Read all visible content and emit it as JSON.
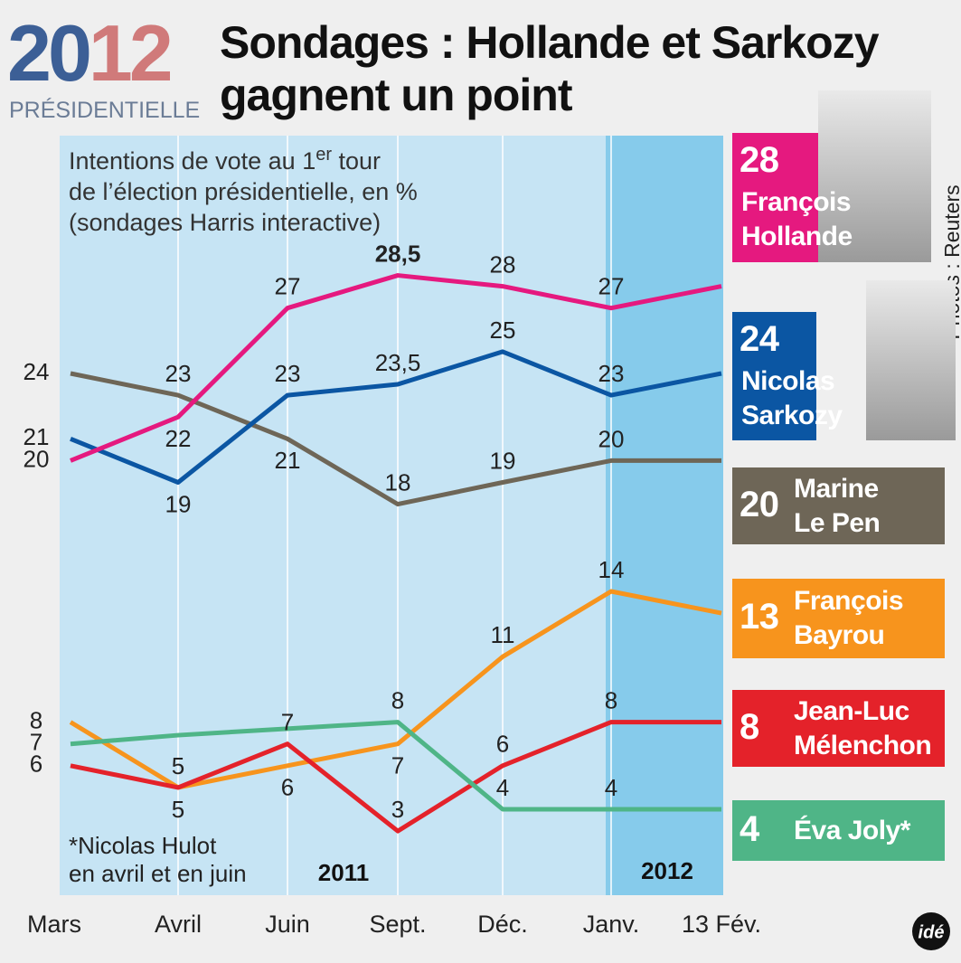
{
  "header": {
    "year": "2012",
    "label": "PRÉSIDENTIELLE",
    "credit": "Photos : Reuters",
    "logo": "idé"
  },
  "chart_data": {
    "type": "line",
    "title": "Sondages : Hollande et Sarkozy\ngagnent un point",
    "subtitle": [
      "Intentions de vote au 1",
      "er",
      " tour\nde l’élection présidentielle, en %\n(sondages Harris interactive)"
    ],
    "note": "*Nicolas Hulot\nen avril et en juin",
    "periods": [
      "2011",
      "2012"
    ],
    "categories": [
      "Mars",
      "Avril",
      "Juin",
      "Sept.",
      "Déc.",
      "Janv.",
      "13 Fév."
    ],
    "series": [
      {
        "name": "François\nHollande",
        "color": "#e5197f",
        "values": [
          20,
          22,
          27,
          28.5,
          28,
          27,
          28
        ],
        "value_labels": [
          "20",
          "22",
          "27",
          "28,5",
          "28",
          "27",
          null
        ]
      },
      {
        "name": "Nicolas\nSarkozy",
        "color": "#0b56a3",
        "values": [
          21,
          19,
          23,
          23.5,
          25,
          23,
          24
        ],
        "value_labels": [
          "21",
          "19",
          "23",
          "23,5",
          "25",
          "23",
          null
        ]
      },
      {
        "name": "Marine\nLe Pen",
        "color": "#6e6657",
        "values": [
          24,
          23,
          21,
          18,
          19,
          20,
          20
        ],
        "value_labels": [
          "24",
          "23",
          "21",
          "18",
          "19",
          "20",
          null
        ]
      },
      {
        "name": "François\nBayrou",
        "color": "#f7941d",
        "values": [
          8,
          5,
          6,
          7,
          11,
          14,
          13
        ],
        "value_labels": [
          "8",
          "5",
          "6",
          "7",
          "11",
          "14",
          null
        ]
      },
      {
        "name": "Jean-Luc\nMélenchon",
        "color": "#e4222a",
        "values": [
          6,
          5,
          7,
          3,
          6,
          8,
          8
        ],
        "value_labels": [
          "6",
          "5",
          "7",
          "3",
          "6",
          "8",
          null
        ]
      },
      {
        "name": "Éva Joly*",
        "color": "#4fb587",
        "values": [
          7,
          7.4,
          7.7,
          8,
          4,
          4,
          4
        ],
        "value_labels": [
          "7",
          null,
          null,
          "8",
          "4",
          "4",
          null
        ]
      }
    ]
  }
}
